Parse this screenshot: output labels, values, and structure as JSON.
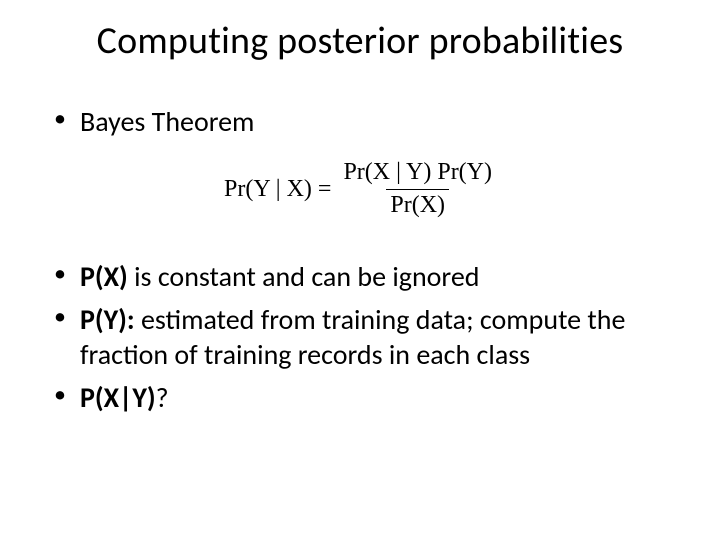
{
  "title": "Computing posterior probabilities",
  "bullet1": "Bayes Theorem",
  "formula": {
    "lhs": "Pr(Y | X) =",
    "numerator": "Pr(X | Y) Pr(Y)",
    "denominator": "Pr(X)",
    "font_family": "Times New Roman",
    "fontsize": 24,
    "color": "#000000"
  },
  "bullet2": {
    "bold": "P(X)",
    "rest": " is constant and can be ignored"
  },
  "bullet3": {
    "bold": "P(Y):",
    "rest": " estimated from training data; compute the fraction of training records in each class"
  },
  "bullet4": {
    "bold": "P(X|Y)",
    "rest": "?"
  },
  "styling": {
    "background_color": "#ffffff",
    "text_color": "#000000",
    "title_fontsize": 38,
    "body_fontsize": 28,
    "font_family": "Calibri"
  }
}
